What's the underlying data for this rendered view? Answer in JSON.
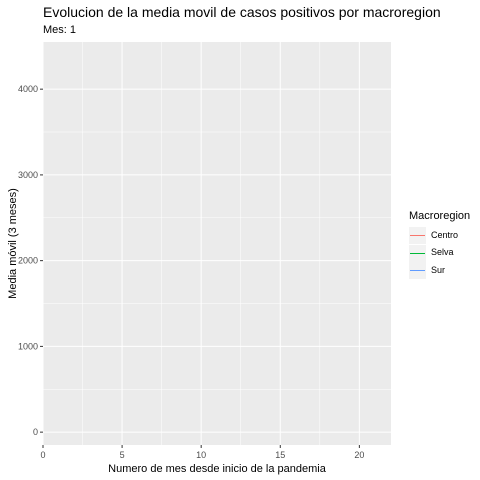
{
  "chart_data": {
    "type": "line",
    "title": "Evolucion de la media movil de casos positivos por macroregion",
    "subtitle": "Mes: 1",
    "xlabel": "Numero de mes desde inicio de la pandemia",
    "ylabel": "Media móvil (3 meses)",
    "xlim": [
      0,
      22
    ],
    "ylim": [
      -150,
      4550
    ],
    "x_ticks": [
      0,
      5,
      10,
      15,
      20
    ],
    "y_ticks": [
      0,
      1000,
      2000,
      3000,
      4000
    ],
    "grid": true,
    "legend_title": "Macroregion",
    "legend_position": "right",
    "series": [
      {
        "name": "Centro",
        "color": "#F8766D",
        "x": [],
        "values": []
      },
      {
        "name": "Selva",
        "color": "#00BA38",
        "x": [],
        "values": []
      },
      {
        "name": "Sur",
        "color": "#619CFF",
        "x": [],
        "values": []
      }
    ]
  },
  "colors": {
    "panel_background": "#EBEBEB",
    "grid_major": "#FFFFFF",
    "axis_text": "#4D4D4D"
  }
}
